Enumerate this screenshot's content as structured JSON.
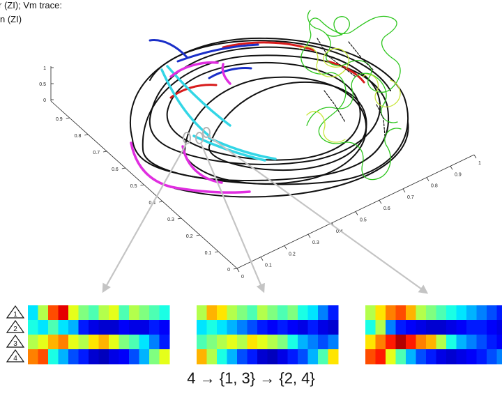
{
  "caption": {
    "line1": "r (ZI); Vm trace:",
    "line2": "n (ZI)"
  },
  "axes": {
    "z_ticks": [
      "1",
      "0.5",
      "0"
    ],
    "x_ticks": [
      "0.9",
      "0.8",
      "0.7",
      "0.6",
      "0.5",
      "0.4",
      "0.3",
      "0.2",
      "0.1",
      "0"
    ],
    "y_ticks": [
      "0",
      "0.1",
      "0.2",
      "0.3",
      "0.4",
      "0.5",
      "0.6",
      "0.7",
      "0.8",
      "0.9",
      "1"
    ]
  },
  "row_labels": [
    "1",
    "2",
    "3",
    "4"
  ],
  "sequence": "4 → {1, 3} → {2, 4}",
  "colors": {
    "trajectory": "#111111",
    "red": "#d81b1b",
    "blue": "#1a2fc8",
    "cyan": "#33d6e6",
    "magenta": "#e02ee0",
    "green": "#2ec61e",
    "lime": "#c8e63c",
    "arrow": "#c4c4c4"
  },
  "heatmaps": [
    [
      [
        0.35,
        0.55,
        0.8,
        0.9,
        0.6,
        0.5,
        0.45,
        0.55,
        0.6,
        0.45,
        0.55,
        0.5,
        0.45,
        0.4
      ],
      [
        0.4,
        0.35,
        0.45,
        0.35,
        0.3,
        0.15,
        0.1,
        0.08,
        0.08,
        0.12,
        0.1,
        0.1,
        0.15,
        0.12
      ],
      [
        0.55,
        0.6,
        0.7,
        0.75,
        0.6,
        0.55,
        0.65,
        0.7,
        0.6,
        0.5,
        0.45,
        0.35,
        0.25,
        0.15
      ],
      [
        0.75,
        0.8,
        0.4,
        0.3,
        0.2,
        0.15,
        0.08,
        0.06,
        0.1,
        0.12,
        0.2,
        0.3,
        0.5,
        0.6
      ]
    ],
    [
      [
        0.55,
        0.7,
        0.65,
        0.55,
        0.5,
        0.45,
        0.55,
        0.5,
        0.45,
        0.5,
        0.4,
        0.35,
        0.25,
        0.15
      ],
      [
        0.35,
        0.4,
        0.35,
        0.3,
        0.25,
        0.2,
        0.15,
        0.12,
        0.15,
        0.12,
        0.1,
        0.15,
        0.1,
        0.08
      ],
      [
        0.45,
        0.5,
        0.55,
        0.6,
        0.55,
        0.65,
        0.6,
        0.55,
        0.5,
        0.4,
        0.3,
        0.25,
        0.2,
        0.25
      ],
      [
        0.7,
        0.55,
        0.4,
        0.3,
        0.2,
        0.15,
        0.08,
        0.06,
        0.1,
        0.15,
        0.2,
        0.3,
        0.45,
        0.65
      ]
    ],
    [
      [
        0.55,
        0.65,
        0.75,
        0.8,
        0.7,
        0.55,
        0.5,
        0.45,
        0.4,
        0.35,
        0.3,
        0.25,
        0.2,
        0.15
      ],
      [
        0.4,
        0.55,
        0.25,
        0.15,
        0.12,
        0.1,
        0.08,
        0.08,
        0.1,
        0.12,
        0.15,
        0.15,
        0.12,
        0.1
      ],
      [
        0.65,
        0.75,
        0.85,
        0.95,
        0.85,
        0.75,
        0.7,
        0.55,
        0.4,
        0.3,
        0.25,
        0.2,
        0.15,
        0.12
      ],
      [
        0.8,
        0.85,
        0.6,
        0.45,
        0.3,
        0.2,
        0.15,
        0.1,
        0.08,
        0.1,
        0.12,
        0.15,
        0.2,
        0.25
      ]
    ]
  ]
}
